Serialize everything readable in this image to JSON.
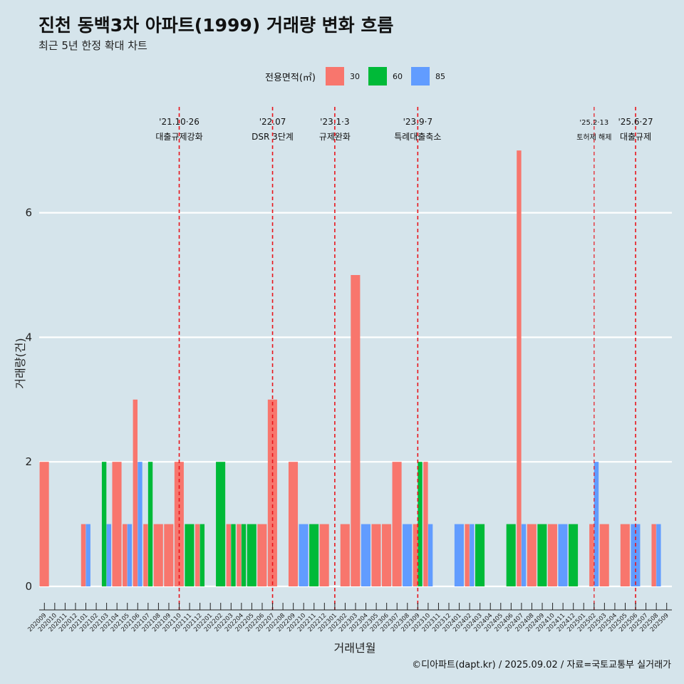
{
  "title": "진천 동백3차 아파트(1999) 거래량 변화 흐름",
  "subtitle": "최근 5년 한정 확대 차트",
  "caption": "©디아파트(dapt.kr) / 2025.09.02 / 자료=국토교통부 실거래가",
  "legend": {
    "title": "전용면적(㎡)",
    "items": [
      {
        "label": "30",
        "color": "#f8766d"
      },
      {
        "label": "60",
        "color": "#00ba38"
      },
      {
        "label": "85",
        "color": "#619cff"
      }
    ]
  },
  "chart_data": {
    "type": "bar",
    "xlabel": "거래년월",
    "ylabel": "거래량(건)",
    "ylim": [
      -0.3,
      7.4
    ],
    "yticks": [
      0,
      2,
      4,
      6
    ],
    "grid": true,
    "legend_position": "top",
    "categories": [
      "202009",
      "202010",
      "202011",
      "202012",
      "202101",
      "202102",
      "202103",
      "202104",
      "202105",
      "202106",
      "202107",
      "202108",
      "202109",
      "202110",
      "202111",
      "202112",
      "202201",
      "202202",
      "202203",
      "202204",
      "202205",
      "202206",
      "202207",
      "202208",
      "202209",
      "202210",
      "202211",
      "202212",
      "202301",
      "202302",
      "202303",
      "202304",
      "202305",
      "202306",
      "202307",
      "202308",
      "202309",
      "202310",
      "202311",
      "202312",
      "202401",
      "202402",
      "202403",
      "202404",
      "202405",
      "202406",
      "202407",
      "202408",
      "202409",
      "202410",
      "202411",
      "202412",
      "202501",
      "202502",
      "202503",
      "202504",
      "202505",
      "202506",
      "202507",
      "202508",
      "202509"
    ],
    "series": [
      {
        "name": "30",
        "color": "#f8766d",
        "values": [
          2,
          0,
          0,
          0,
          1,
          0,
          0,
          2,
          1,
          3,
          1,
          1,
          1,
          2,
          0,
          1,
          0,
          0,
          1,
          1,
          0,
          1,
          3,
          0,
          2,
          0,
          0,
          1,
          0,
          1,
          5,
          0,
          1,
          1,
          2,
          0,
          1,
          2,
          0,
          0,
          0,
          1,
          0,
          0,
          0,
          0,
          7,
          1,
          0,
          1,
          0,
          0,
          0,
          1,
          1,
          0,
          1,
          0,
          0,
          1,
          0
        ]
      },
      {
        "name": "60",
        "color": "#00ba38",
        "values": [
          0,
          0,
          0,
          0,
          0,
          0,
          2,
          0,
          0,
          0,
          2,
          0,
          0,
          0,
          1,
          1,
          0,
          2,
          1,
          1,
          1,
          0,
          0,
          0,
          0,
          0,
          1,
          0,
          0,
          0,
          0,
          0,
          0,
          0,
          0,
          0,
          2,
          0,
          0,
          0,
          0,
          0,
          1,
          0,
          0,
          1,
          0,
          0,
          1,
          0,
          0,
          1,
          0,
          0,
          0,
          0,
          0,
          0,
          0,
          0,
          0
        ]
      },
      {
        "name": "85",
        "color": "#619cff",
        "values": [
          0,
          0,
          0,
          0,
          1,
          0,
          1,
          0,
          1,
          2,
          0,
          0,
          0,
          0,
          0,
          0,
          0,
          0,
          0,
          0,
          0,
          0,
          0,
          0,
          0,
          1,
          0,
          0,
          0,
          0,
          0,
          1,
          0,
          0,
          0,
          1,
          0,
          1,
          0,
          0,
          1,
          1,
          0,
          0,
          0,
          0,
          1,
          0,
          0,
          0,
          1,
          0,
          0,
          2,
          0,
          0,
          0,
          1,
          0,
          1,
          0
        ]
      }
    ],
    "annotations": [
      {
        "month": "202110",
        "date": "'21.10·26",
        "label": "대출규제강화",
        "small": false
      },
      {
        "month": "202207",
        "date": "'22.07",
        "label": "DSR 3단계",
        "small": false
      },
      {
        "month": "202301",
        "date": "'23.1·3",
        "label": "규제완화",
        "small": false
      },
      {
        "month": "202309",
        "date": "'23.9·7",
        "label": "특례대출축소",
        "small": false
      },
      {
        "month": "202502",
        "date": "'25.2·13",
        "label": "토허제 해제",
        "small": true
      },
      {
        "month": "202506",
        "date": "'25.6·27",
        "label": "대출규제",
        "small": false
      }
    ]
  }
}
